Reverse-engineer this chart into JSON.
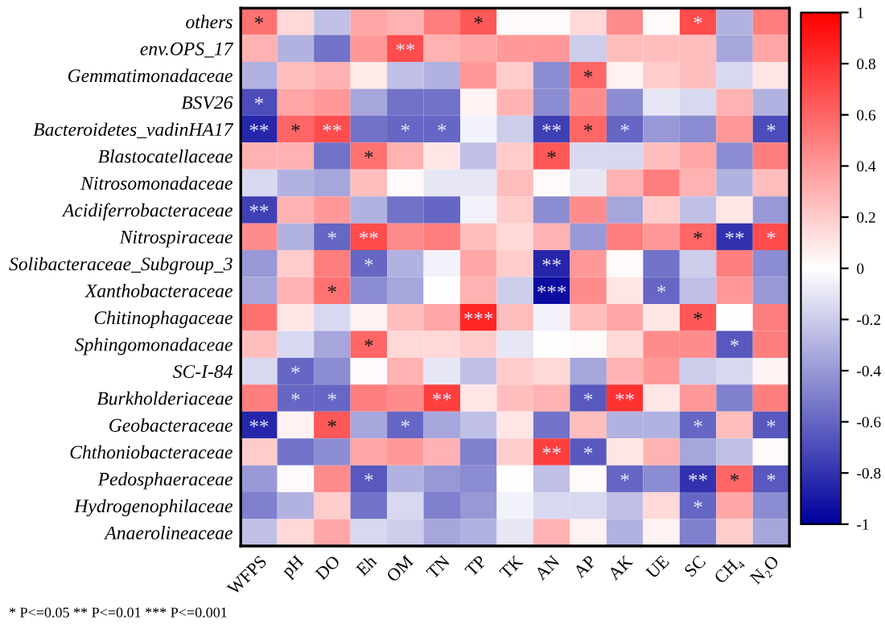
{
  "chart_data": {
    "type": "heatmap",
    "categories": [
      "WFPS",
      "pH",
      "DO",
      "Eh",
      "OM",
      "TN",
      "TP",
      "TK",
      "AN",
      "AP",
      "AK",
      "UE",
      "SC",
      "CH₄",
      "N₂O"
    ],
    "y_categories": [
      "others",
      "env.OPS_17",
      "Gemmatimonadaceae",
      "BSV26",
      "Bacteroidetes_vadinHA17",
      "Blastocatellaceae",
      "Nitrosomonadaceae",
      "Acidiferrobacteraceae",
      "Nitrospiraceae",
      "Solibacteraceae_Subgroup_3",
      "Xanthobacteraceae",
      "Chitinophagaceae",
      "Sphingomonadaceae",
      "SC-I-84",
      "Burkholderiaceae",
      "Geobacteraceae",
      "Chthoniobacteraceae",
      "Pedosphaeraceae",
      "Hydrogenophilaceae",
      "Anaerolineaceae"
    ],
    "cells": [
      [
        0.55,
        0.15,
        -0.25,
        0.35,
        0.3,
        0.5,
        0.65,
        0.02,
        0.02,
        0.15,
        0.45,
        0.02,
        0.7,
        -0.3,
        0.5
      ],
      [
        0.3,
        -0.3,
        -0.55,
        0.4,
        0.7,
        0.3,
        0.35,
        0.4,
        0.4,
        -0.2,
        0.25,
        0.25,
        0.25,
        -0.35,
        0.35
      ],
      [
        -0.3,
        0.25,
        0.3,
        0.08,
        -0.25,
        -0.3,
        0.4,
        0.2,
        -0.45,
        0.6,
        0.05,
        0.2,
        0.25,
        -0.15,
        0.1
      ],
      [
        -0.7,
        0.35,
        0.4,
        -0.35,
        -0.55,
        -0.55,
        0.05,
        0.3,
        -0.45,
        0.45,
        -0.45,
        -0.1,
        -0.15,
        0.3,
        -0.3
      ],
      [
        -0.85,
        0.6,
        0.7,
        -0.55,
        -0.6,
        -0.6,
        -0.05,
        -0.2,
        -0.75,
        0.6,
        -0.6,
        -0.4,
        -0.45,
        0.4,
        -0.7
      ],
      [
        0.3,
        0.3,
        -0.55,
        0.55,
        0.3,
        0.1,
        -0.25,
        0.2,
        0.65,
        -0.15,
        -0.15,
        0.25,
        0.35,
        -0.45,
        0.5
      ],
      [
        -0.15,
        -0.3,
        -0.35,
        0.25,
        0.02,
        -0.1,
        -0.1,
        0.25,
        0.02,
        -0.1,
        0.3,
        0.5,
        0.3,
        -0.3,
        0.25
      ],
      [
        -0.75,
        0.3,
        0.4,
        -0.3,
        -0.55,
        -0.6,
        -0.05,
        0.2,
        -0.45,
        0.45,
        -0.35,
        0.2,
        -0.25,
        0.1,
        -0.4
      ],
      [
        0.45,
        -0.3,
        -0.6,
        0.7,
        0.45,
        0.5,
        0.25,
        0.15,
        0.3,
        -0.4,
        0.5,
        0.4,
        0.6,
        -0.8,
        0.7
      ],
      [
        -0.4,
        0.2,
        0.5,
        -0.6,
        -0.3,
        -0.05,
        0.35,
        0.2,
        -0.85,
        0.4,
        0.02,
        -0.55,
        -0.2,
        0.5,
        -0.45
      ],
      [
        -0.35,
        0.3,
        0.55,
        -0.45,
        -0.35,
        0.0,
        0.3,
        -0.2,
        -0.95,
        0.45,
        0.1,
        -0.6,
        -0.25,
        0.4,
        -0.4
      ],
      [
        0.55,
        0.1,
        -0.15,
        0.05,
        0.25,
        0.35,
        0.85,
        0.25,
        -0.05,
        0.25,
        0.35,
        0.1,
        0.65,
        0.0,
        0.5
      ],
      [
        0.25,
        -0.15,
        -0.35,
        0.6,
        0.15,
        0.15,
        0.2,
        -0.1,
        0.0,
        0.02,
        0.15,
        0.45,
        0.45,
        -0.65,
        0.5
      ],
      [
        -0.15,
        -0.6,
        -0.45,
        0.02,
        0.3,
        -0.1,
        -0.25,
        0.2,
        0.15,
        -0.35,
        0.3,
        0.4,
        -0.2,
        -0.15,
        0.05
      ],
      [
        0.5,
        -0.6,
        -0.6,
        0.5,
        0.45,
        0.75,
        0.1,
        0.25,
        0.3,
        -0.65,
        0.8,
        0.1,
        0.4,
        -0.5,
        0.5
      ],
      [
        -0.85,
        0.05,
        0.65,
        -0.35,
        -0.6,
        -0.35,
        -0.25,
        0.1,
        -0.55,
        0.25,
        -0.3,
        -0.3,
        -0.6,
        0.25,
        -0.65
      ],
      [
        0.2,
        -0.55,
        -0.45,
        0.35,
        0.4,
        0.3,
        -0.5,
        0.2,
        0.75,
        -0.65,
        0.1,
        0.3,
        -0.35,
        -0.25,
        0.02
      ],
      [
        -0.4,
        0.02,
        0.45,
        -0.65,
        -0.3,
        -0.4,
        -0.45,
        0.0,
        -0.25,
        0.02,
        -0.6,
        -0.45,
        -0.8,
        0.6,
        -0.65
      ],
      [
        -0.5,
        -0.3,
        0.2,
        -0.55,
        -0.15,
        -0.5,
        -0.4,
        -0.05,
        -0.15,
        -0.15,
        -0.25,
        0.15,
        -0.6,
        0.35,
        -0.45
      ],
      [
        -0.25,
        0.15,
        0.35,
        -0.15,
        -0.2,
        -0.35,
        -0.3,
        -0.1,
        0.3,
        0.05,
        -0.3,
        0.05,
        -0.5,
        0.2,
        -0.35
      ]
    ],
    "cell_labels": [
      [
        "*",
        null,
        null,
        null,
        null,
        null,
        "*",
        null,
        null,
        null,
        null,
        null,
        "*",
        null,
        null
      ],
      [
        null,
        null,
        null,
        null,
        "**",
        null,
        null,
        null,
        null,
        null,
        null,
        null,
        null,
        null,
        null
      ],
      [
        null,
        null,
        null,
        null,
        null,
        null,
        null,
        null,
        null,
        "*",
        null,
        null,
        null,
        null,
        null
      ],
      [
        "*",
        null,
        null,
        null,
        null,
        null,
        null,
        null,
        null,
        null,
        null,
        null,
        null,
        null,
        null
      ],
      [
        "**",
        "*",
        "**",
        null,
        "*",
        "*",
        null,
        null,
        "**",
        "*",
        "*",
        null,
        null,
        null,
        "*"
      ],
      [
        null,
        null,
        null,
        "*",
        null,
        null,
        null,
        null,
        "*",
        null,
        null,
        null,
        null,
        null,
        null
      ],
      [
        null,
        null,
        null,
        null,
        null,
        null,
        null,
        null,
        null,
        null,
        null,
        null,
        null,
        null,
        null
      ],
      [
        "**",
        null,
        null,
        null,
        null,
        null,
        null,
        null,
        null,
        null,
        null,
        null,
        null,
        null,
        null
      ],
      [
        null,
        null,
        "*",
        "**",
        null,
        null,
        null,
        null,
        null,
        null,
        null,
        null,
        "*",
        "**",
        "*"
      ],
      [
        null,
        null,
        null,
        "*",
        null,
        null,
        null,
        null,
        "**",
        null,
        null,
        null,
        null,
        null,
        null
      ],
      [
        null,
        null,
        "*",
        null,
        null,
        null,
        null,
        null,
        "***",
        null,
        null,
        "*",
        null,
        null,
        null
      ],
      [
        null,
        null,
        null,
        null,
        null,
        null,
        "***",
        null,
        null,
        null,
        null,
        null,
        "*",
        null,
        null
      ],
      [
        null,
        null,
        null,
        "*",
        null,
        null,
        null,
        null,
        null,
        null,
        null,
        null,
        null,
        "*",
        null
      ],
      [
        null,
        "*",
        null,
        null,
        null,
        null,
        null,
        null,
        null,
        null,
        null,
        null,
        null,
        null,
        null
      ],
      [
        null,
        "*",
        "*",
        null,
        null,
        "**",
        null,
        null,
        null,
        "*",
        "**",
        null,
        null,
        null,
        null
      ],
      [
        "**",
        null,
        "*",
        null,
        "*",
        null,
        null,
        null,
        null,
        null,
        null,
        null,
        "*",
        null,
        "*"
      ],
      [
        null,
        null,
        null,
        null,
        null,
        null,
        null,
        null,
        "**",
        "*",
        null,
        null,
        null,
        null,
        null
      ],
      [
        null,
        null,
        null,
        "*",
        null,
        null,
        null,
        null,
        null,
        null,
        "*",
        null,
        "**",
        "*",
        "*"
      ],
      [
        null,
        null,
        null,
        null,
        null,
        null,
        null,
        null,
        null,
        null,
        null,
        null,
        "*",
        null,
        null
      ],
      [
        null,
        null,
        null,
        null,
        null,
        null,
        null,
        null,
        null,
        null,
        null,
        null,
        null,
        null,
        null
      ]
    ],
    "colors": [
      "#00009c",
      "#ffffff",
      "#ff0000"
    ],
    "clim": [
      -1,
      1
    ],
    "cticks": [
      -1,
      -0.8,
      -0.6,
      -0.4,
      -0.2,
      0,
      0.2,
      0.4,
      0.6,
      0.8,
      1
    ],
    "annotations": [
      "* P<=0.05 ** P<=0.01 *** P<=0.001"
    ]
  }
}
